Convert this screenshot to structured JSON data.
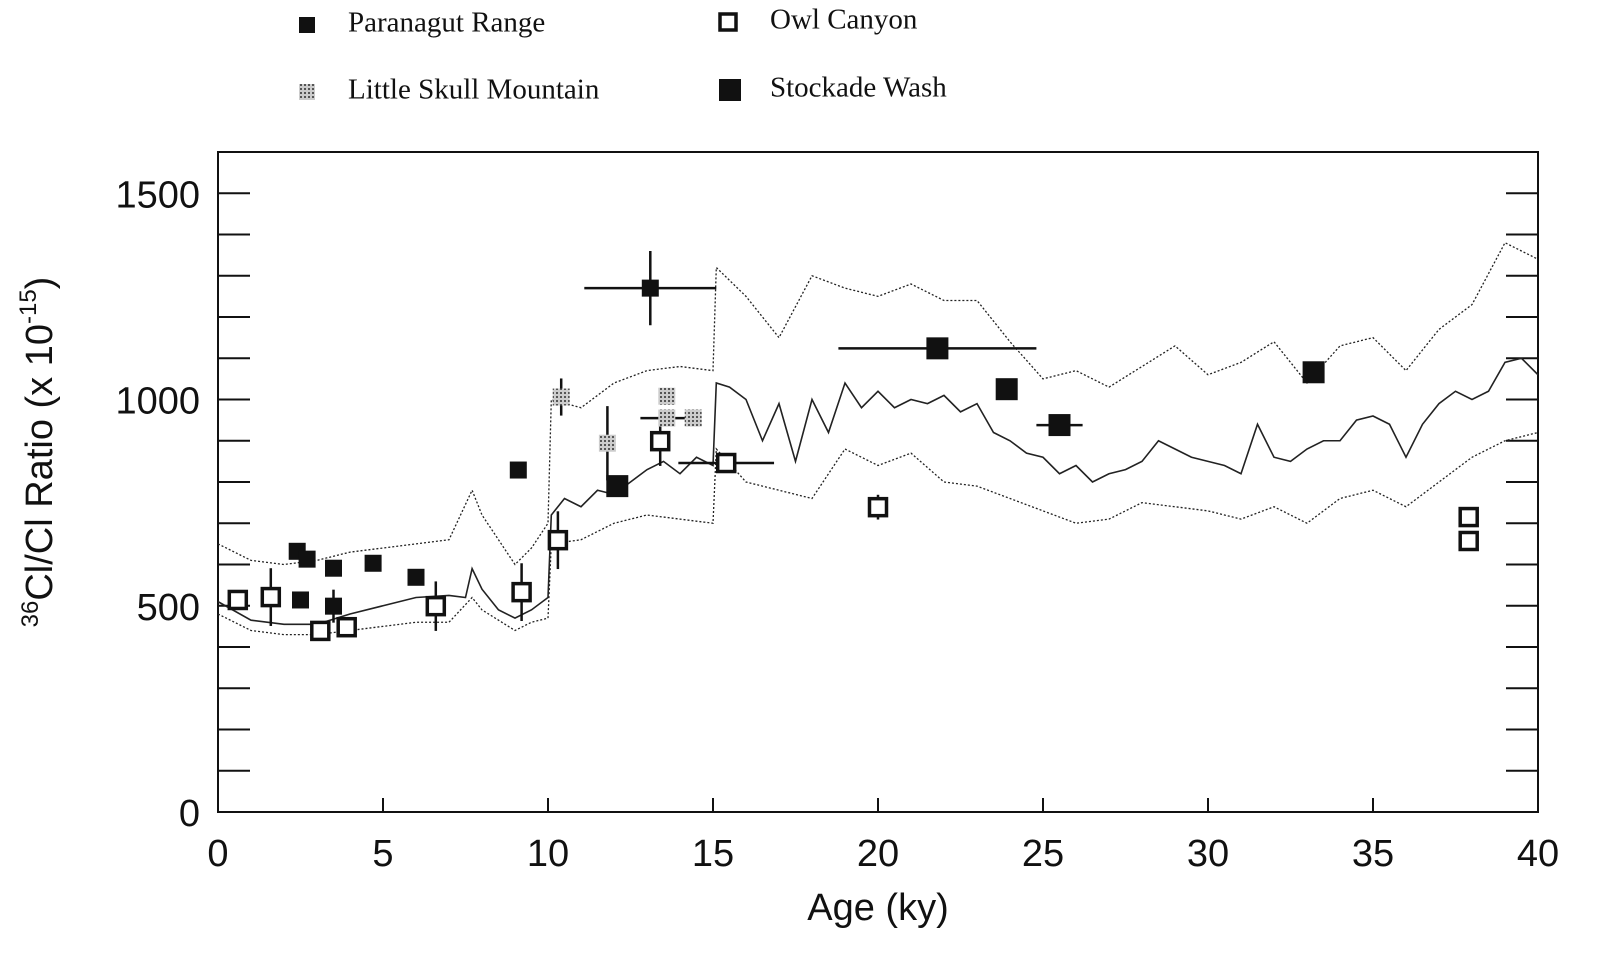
{
  "chart_data": {
    "type": "scatter",
    "xlabel": "Age (ky)",
    "ylabel": {
      "sup1": "36",
      "main": "Cl/Cl Ratio (x 10",
      "sup2": "-15",
      "end": ")"
    },
    "xlim": [
      0,
      40
    ],
    "ylim": [
      0,
      1600
    ],
    "xticks": [
      0,
      5,
      10,
      15,
      20,
      25,
      30,
      35,
      40
    ],
    "yticks": [
      0,
      500,
      1000,
      1500
    ],
    "yminorticks": [
      100,
      200,
      300,
      400,
      600,
      700,
      800,
      900,
      1100,
      1200,
      1300,
      1400
    ],
    "series": [
      {
        "name": "Paranagut Range",
        "marker": "filled",
        "color": "#111",
        "x": [
          2.4,
          2.7,
          2.5,
          3.5,
          3.5,
          4.7,
          6,
          9.1,
          13.1
        ],
        "values": [
          632,
          613,
          514,
          591,
          499,
          603,
          569,
          829,
          1270
        ],
        "yerr": [
          null,
          null,
          null,
          null,
          40,
          null,
          null,
          null,
          90
        ],
        "xerr": [
          null,
          null,
          null,
          null,
          null,
          null,
          null,
          null,
          2
        ]
      },
      {
        "name": "Owl Canyon",
        "marker": "open",
        "color": "#111",
        "x": [
          0.6,
          1.6,
          3.1,
          3.9,
          6.6,
          9.2,
          10.3,
          13.4,
          15.4,
          20,
          37.9,
          37.9
        ],
        "values": [
          514,
          521,
          439,
          448,
          499,
          533,
          659,
          899,
          846,
          739,
          715,
          657
        ],
        "yerr": [
          null,
          70,
          null,
          null,
          60,
          70,
          70,
          60,
          null,
          30,
          null,
          null
        ],
        "xerr": [
          null,
          null,
          null,
          null,
          null,
          null,
          null,
          null,
          1.45,
          null,
          0.3,
          0.3
        ]
      },
      {
        "name": "Little Skull Mountain",
        "marker": "hatched",
        "color": "#999",
        "x": [
          10.4,
          11.8,
          13.6,
          13.6,
          14.4
        ],
        "values": [
          1006,
          894,
          1008,
          955,
          955
        ],
        "yerr": [
          45,
          90,
          null,
          null,
          null
        ],
        "xerr": [
          null,
          null,
          null,
          0.8,
          null
        ]
      },
      {
        "name": "Stockade Wash",
        "marker": "large",
        "color": "#111",
        "x": [
          12.1,
          21.8,
          23.9,
          25.5,
          33.2
        ],
        "values": [
          790,
          1124,
          1025,
          938,
          1066
        ],
        "yerr": [
          null,
          null,
          20,
          null,
          25
        ],
        "xerr": [
          null,
          3,
          null,
          0.7,
          null
        ]
      }
    ],
    "lines": [
      {
        "style": "solid",
        "x": [
          0,
          1,
          2,
          3,
          4,
          5,
          6,
          7,
          7.5,
          7.7,
          8,
          8.5,
          9,
          9.5,
          10,
          10.1,
          10.5,
          11,
          11.5,
          12,
          12.5,
          13,
          13.5,
          14,
          14.5,
          15,
          15.1,
          15.5,
          16,
          16.5,
          17,
          17.5,
          18,
          18.5,
          19,
          19.5,
          20,
          20.5,
          21,
          21.5,
          22,
          22.5,
          23,
          23.5,
          24,
          24.5,
          25,
          25.5,
          26,
          26.5,
          27,
          27.5,
          28,
          28.5,
          29,
          29.5,
          30,
          30.5,
          31,
          31.5,
          32,
          32.5,
          33,
          33.5,
          34,
          34.5,
          35,
          35.5,
          36,
          36.5,
          37,
          37.5,
          38,
          38.5,
          39,
          39.5,
          40
        ],
        "values": [
          510,
          465,
          455,
          455,
          480,
          500,
          520,
          525,
          520,
          590,
          540,
          490,
          470,
          490,
          520,
          720,
          760,
          740,
          780,
          770,
          800,
          830,
          850,
          820,
          860,
          840,
          1040,
          1030,
          1000,
          900,
          990,
          850,
          1000,
          920,
          1040,
          980,
          1020,
          980,
          1000,
          990,
          1010,
          970,
          990,
          920,
          900,
          870,
          860,
          820,
          840,
          800,
          820,
          830,
          850,
          900,
          880,
          860,
          850,
          840,
          820,
          940,
          860,
          850,
          880,
          900,
          900,
          950,
          960,
          940,
          860,
          940,
          990,
          1020,
          1000,
          1020,
          1090,
          1100,
          1060
        ]
      },
      {
        "style": "dotted",
        "x": [
          0,
          1,
          2,
          3,
          4,
          5,
          6,
          7,
          7.7,
          8,
          9,
          9.5,
          10,
          10.1,
          11,
          12,
          13,
          14,
          15,
          15.1,
          16,
          17,
          18,
          19,
          20,
          21,
          22,
          23,
          24,
          25,
          26,
          27,
          28,
          29,
          30,
          31,
          32,
          33,
          34,
          35,
          36,
          37,
          38,
          39,
          40
        ],
        "values": [
          650,
          610,
          600,
          610,
          630,
          640,
          650,
          660,
          780,
          720,
          600,
          640,
          700,
          1000,
          980,
          1040,
          1070,
          1080,
          1070,
          1320,
          1250,
          1150,
          1300,
          1270,
          1250,
          1280,
          1240,
          1240,
          1140,
          1050,
          1070,
          1030,
          1080,
          1130,
          1060,
          1090,
          1140,
          1040,
          1130,
          1150,
          1070,
          1170,
          1230,
          1380,
          1340
        ]
      },
      {
        "style": "dotted",
        "x": [
          0,
          1,
          2,
          3,
          4,
          5,
          6,
          7,
          7.7,
          8,
          9,
          9.5,
          10,
          10.1,
          11,
          12,
          13,
          14,
          15,
          15.1,
          16,
          17,
          18,
          19,
          20,
          21,
          22,
          23,
          24,
          25,
          26,
          27,
          28,
          29,
          30,
          31,
          32,
          33,
          34,
          35,
          36,
          37,
          38,
          39,
          40
        ],
        "values": [
          480,
          440,
          430,
          430,
          440,
          450,
          460,
          460,
          520,
          490,
          440,
          460,
          470,
          650,
          660,
          700,
          720,
          710,
          700,
          880,
          800,
          780,
          760,
          880,
          840,
          870,
          800,
          790,
          760,
          730,
          700,
          710,
          750,
          740,
          730,
          710,
          740,
          700,
          760,
          780,
          740,
          800,
          860,
          900,
          920
        ]
      }
    ]
  }
}
